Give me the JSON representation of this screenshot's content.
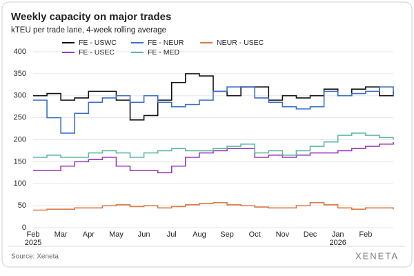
{
  "chart_data": {
    "type": "line",
    "title": "Weekly capacity on major trades",
    "subtitle": "kTEU per trade lane, 4-week rolling average",
    "source": "Source: Xeneta",
    "logo": "XENETA",
    "categories": [
      "Feb 2025",
      null,
      "Mar",
      null,
      "Apr",
      null,
      "May",
      null,
      "Jun",
      null,
      "Jul",
      null,
      "Aug",
      null,
      "Sep",
      null,
      "Oct",
      null,
      "Nov",
      null,
      "Dec",
      null,
      "Jan 2026",
      null,
      "Feb",
      null,
      null
    ],
    "ylim": [
      0,
      400
    ],
    "yticks": [
      0,
      50,
      100,
      150,
      200,
      250,
      300,
      350,
      400
    ],
    "grid": true,
    "step": true,
    "series": [
      {
        "name": "FE - USWC",
        "color": "#111111",
        "values": [
          300,
          305,
          290,
          295,
          310,
          310,
          290,
          245,
          255,
          290,
          330,
          350,
          345,
          310,
          300,
          320,
          320,
          290,
          300,
          295,
          300,
          315,
          300,
          315,
          320,
          300,
          310
        ]
      },
      {
        "name": "FE - NEUR",
        "color": "#3a6fc4",
        "values": [
          290,
          250,
          215,
          260,
          285,
          295,
          300,
          285,
          300,
          285,
          275,
          280,
          290,
          310,
          320,
          320,
          295,
          285,
          275,
          270,
          275,
          310,
          300,
          305,
          310,
          320,
          300
        ]
      },
      {
        "name": "NEUR - USEC",
        "color": "#d97a45",
        "values": [
          40,
          42,
          42,
          45,
          45,
          50,
          52,
          48,
          50,
          45,
          48,
          52,
          55,
          57,
          52,
          50,
          47,
          45,
          45,
          50,
          57,
          52,
          45,
          42,
          45,
          45,
          42
        ]
      },
      {
        "name": "FE - USEC",
        "color": "#9b3bbf",
        "values": [
          130,
          130,
          140,
          150,
          155,
          160,
          140,
          130,
          130,
          125,
          140,
          160,
          170,
          175,
          180,
          180,
          160,
          165,
          160,
          165,
          170,
          170,
          175,
          180,
          185,
          190,
          195
        ]
      },
      {
        "name": "FE - MED",
        "color": "#5cb8a0",
        "values": [
          160,
          165,
          160,
          160,
          170,
          175,
          170,
          160,
          170,
          175,
          180,
          175,
          175,
          180,
          185,
          190,
          170,
          175,
          165,
          175,
          185,
          195,
          210,
          215,
          210,
          205,
          200
        ]
      }
    ]
  }
}
